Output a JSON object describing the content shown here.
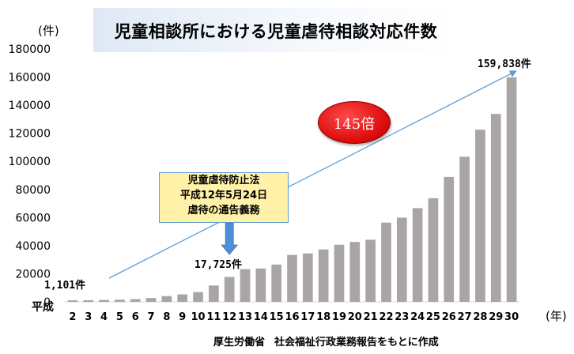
{
  "title": "児童相談所における児童虐待相談対応件数",
  "y_unit": "(件)",
  "x_unit": "(年)",
  "x_era_label": "平成",
  "source": {
    "org": "厚生労働省",
    "detail": "社会福祉行政業務報告をもとに作成"
  },
  "annotations": {
    "start_value": "1,101件",
    "year12_value": "17,725件",
    "end_value": "159,838件",
    "ratio": "145倍",
    "law_box": [
      "児童虐待防止法",
      "平成12年5月24日",
      "虐待の通告義務"
    ]
  },
  "colors": {
    "bar": "#aaa5a5",
    "trend_line": "#5b9bd5",
    "down_arrow": "#4f8fd6"
  },
  "chart_data": {
    "type": "bar",
    "title": "児童相談所における児童虐待相談対応件数",
    "xlabel": "(年)",
    "ylabel": "(件)",
    "ylim": [
      0,
      180000
    ],
    "yticks": [
      0,
      20000,
      40000,
      60000,
      80000,
      100000,
      120000,
      140000,
      160000,
      180000
    ],
    "ytick_labels": [
      "0",
      "20000",
      "40000",
      "60000",
      "80000",
      "100000",
      "120000",
      "140000",
      "160000",
      "180000"
    ],
    "grid": false,
    "categories": [
      "2",
      "3",
      "4",
      "5",
      "6",
      "7",
      "8",
      "9",
      "10",
      "11",
      "12",
      "13",
      "14",
      "15",
      "16",
      "17",
      "18",
      "19",
      "20",
      "21",
      "22",
      "23",
      "24",
      "25",
      "26",
      "27",
      "28",
      "29",
      "30"
    ],
    "values": [
      1101,
      1171,
      1372,
      1611,
      1961,
      2722,
      4102,
      5352,
      6932,
      11631,
      17725,
      23274,
      23738,
      26569,
      33408,
      34472,
      37323,
      40639,
      42664,
      44211,
      56384,
      59919,
      66701,
      73802,
      88931,
      103286,
      122575,
      133778,
      159838
    ]
  }
}
